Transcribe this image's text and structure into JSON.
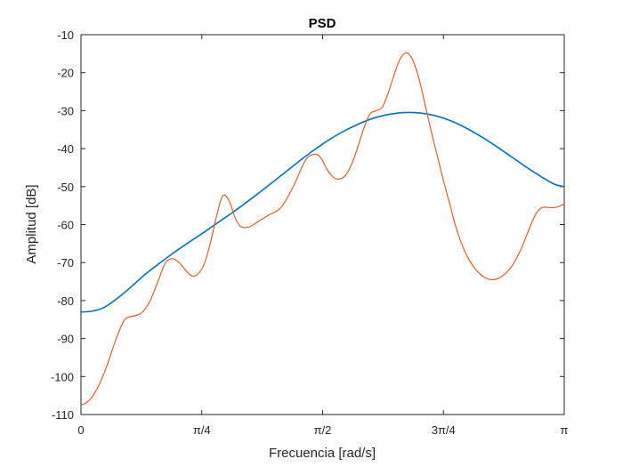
{
  "chart_data": {
    "type": "line",
    "title": "PSD",
    "xlabel": "Frecuencia [rad/s]",
    "ylabel": "Amplitud [dB]",
    "xlim": [
      0,
      3.14159
    ],
    "ylim": [
      -110,
      -10
    ],
    "grid": false,
    "x_ticks": [
      {
        "value": 0,
        "label": "0"
      },
      {
        "value": 0.7854,
        "label": "π/4"
      },
      {
        "value": 1.5708,
        "label": "π/2"
      },
      {
        "value": 2.3562,
        "label": "3π/4"
      },
      {
        "value": 3.14159,
        "label": "π"
      }
    ],
    "y_ticks": [
      -110,
      -100,
      -90,
      -80,
      -70,
      -60,
      -50,
      -40,
      -30,
      -20,
      -10
    ],
    "series": [
      {
        "color": "#0072BD",
        "x": [
          0,
          0.07,
          0.14,
          0.2,
          0.28,
          0.35,
          0.42,
          0.5,
          0.6,
          0.7,
          0.8,
          0.9,
          1.0,
          1.1,
          1.2,
          1.3,
          1.4,
          1.5,
          1.6,
          1.7,
          1.8,
          1.9,
          2.0,
          2.1,
          2.2,
          2.3,
          2.4,
          2.5,
          2.6,
          2.7,
          2.8,
          2.9,
          3.0,
          3.08,
          3.14159
        ],
        "y": [
          -83,
          -82.8,
          -82,
          -80.5,
          -78,
          -75.5,
          -73,
          -70.5,
          -67.5,
          -64.7,
          -62,
          -59.2,
          -56.4,
          -53.4,
          -50.3,
          -47.1,
          -43.9,
          -40.8,
          -38,
          -35.6,
          -33.6,
          -32,
          -31,
          -30.5,
          -30.6,
          -31.3,
          -32.6,
          -34.5,
          -36.8,
          -39.4,
          -42.2,
          -45,
          -47.6,
          -49.4,
          -50
        ]
      },
      {
        "color": "#D95319",
        "x": [
          0,
          0.03,
          0.07,
          0.12,
          0.17,
          0.22,
          0.27,
          0.3,
          0.35,
          0.4,
          0.45,
          0.5,
          0.55,
          0.6,
          0.65,
          0.68,
          0.72,
          0.76,
          0.8,
          0.84,
          0.88,
          0.92,
          0.96,
          1.0,
          1.03,
          1.06,
          1.1,
          1.14,
          1.18,
          1.22,
          1.3,
          1.38,
          1.46,
          1.52,
          1.56,
          1.6,
          1.64,
          1.68,
          1.72,
          1.76,
          1.8,
          1.84,
          1.88,
          1.92,
          1.96,
          2.0,
          2.04,
          2.08,
          2.12,
          2.16,
          2.2,
          2.24,
          2.28,
          2.32,
          2.36,
          2.4,
          2.44,
          2.5,
          2.56,
          2.62,
          2.68,
          2.74,
          2.8,
          2.86,
          2.92,
          2.96,
          3.0,
          3.04,
          3.08,
          3.12,
          3.14159
        ],
        "y": [
          -107.5,
          -107,
          -105.5,
          -102,
          -97,
          -91,
          -86,
          -84.5,
          -84,
          -83,
          -80,
          -75,
          -70,
          -69,
          -70.5,
          -72,
          -73.5,
          -73,
          -70.5,
          -65,
          -58,
          -52.5,
          -53.5,
          -58,
          -60.2,
          -60.8,
          -60.5,
          -59.5,
          -58.5,
          -57.5,
          -55.5,
          -50,
          -43,
          -41.5,
          -42.5,
          -45.5,
          -47.5,
          -48,
          -47,
          -44,
          -39.5,
          -34.5,
          -30.8,
          -30,
          -29,
          -25,
          -20,
          -16,
          -14.8,
          -17,
          -22,
          -29,
          -36,
          -42.5,
          -49,
          -55,
          -61,
          -67.5,
          -71.5,
          -73.8,
          -74.5,
          -73.5,
          -71,
          -66.5,
          -60.5,
          -57,
          -55.5,
          -55.5,
          -55.5,
          -55,
          -54.5
        ]
      }
    ]
  }
}
